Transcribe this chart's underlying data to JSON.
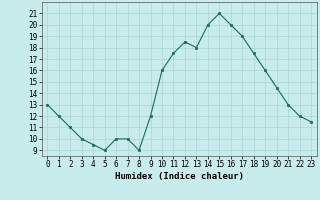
{
  "x": [
    0,
    1,
    2,
    3,
    4,
    5,
    6,
    7,
    8,
    9,
    10,
    11,
    12,
    13,
    14,
    15,
    16,
    17,
    18,
    19,
    20,
    21,
    22,
    23
  ],
  "y": [
    13,
    12,
    11,
    10,
    9.5,
    9,
    10,
    10,
    9,
    12,
    16,
    17.5,
    18.5,
    18,
    20,
    21,
    20,
    19,
    17.5,
    16,
    14.5,
    13,
    12,
    11.5
  ],
  "line_color": "#1a6b5a",
  "marker_color": "#1a6b5a",
  "bg_color": "#c8ecec",
  "grid_color": "#b0d8d8",
  "xlabel": "Humidex (Indice chaleur)",
  "xlim": [
    -0.5,
    23.5
  ],
  "ylim": [
    8.5,
    22
  ],
  "yticks": [
    9,
    10,
    11,
    12,
    13,
    14,
    15,
    16,
    17,
    18,
    19,
    20,
    21
  ],
  "xticks": [
    0,
    1,
    2,
    3,
    4,
    5,
    6,
    7,
    8,
    9,
    10,
    11,
    12,
    13,
    14,
    15,
    16,
    17,
    18,
    19,
    20,
    21,
    22,
    23
  ],
  "tick_fontsize": 5.5,
  "label_fontsize": 6.5
}
